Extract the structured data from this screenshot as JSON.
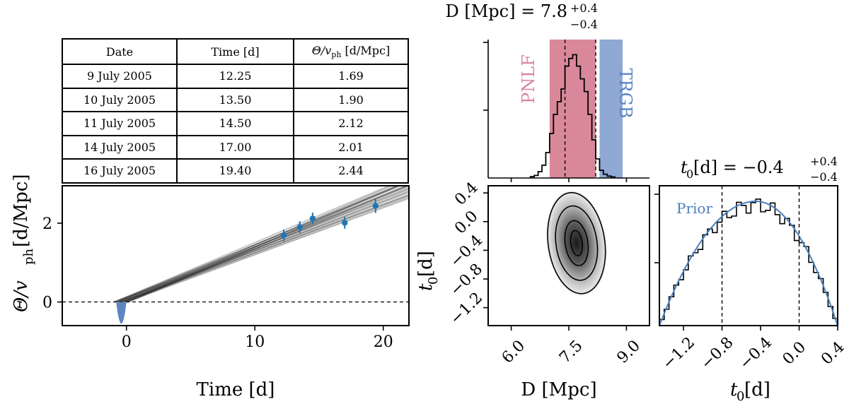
{
  "table": {
    "headers": [
      "Date",
      "Time [d]",
      "Θ/v",
      "ph",
      " [d/Mpc]"
    ],
    "rows": [
      {
        "date": "9 July 2005",
        "time": "12.25",
        "ratio": "1.69"
      },
      {
        "date": "10 July 2005",
        "time": "13.50",
        "ratio": "1.90"
      },
      {
        "date": "11 July 2005",
        "time": "14.50",
        "ratio": "2.12"
      },
      {
        "date": "14 July 2005",
        "time": "17.00",
        "ratio": "2.01"
      },
      {
        "date": "16 July 2005",
        "time": "19.40",
        "ratio": "2.44"
      }
    ]
  },
  "chart_data": [
    {
      "type": "scatter",
      "name": "theta-vs-time",
      "xlabel": "Time [d]",
      "ylabel_main": "Θ/v",
      "ylabel_sub": "ph",
      "ylabel_unit": " [d/Mpc]",
      "xlim": [
        -5,
        22
      ],
      "ylim": [
        -0.6,
        2.95
      ],
      "xticks": [
        0,
        10,
        20
      ],
      "yticks": [
        0,
        2
      ],
      "points": {
        "x": [
          12.25,
          13.5,
          14.5,
          17.0,
          19.4
        ],
        "y": [
          1.69,
          1.9,
          2.12,
          2.01,
          2.44
        ],
        "yerr": [
          0.15,
          0.15,
          0.15,
          0.15,
          0.18
        ]
      },
      "fit_lines": {
        "x0_range": [
          -1.0,
          0.2
        ],
        "slope_range": [
          0.118,
          0.142
        ],
        "count": 40
      },
      "prior_t0": {
        "center": -0.4,
        "width": 0.8
      },
      "zero_line": 0
    },
    {
      "type": "histogram",
      "name": "distance-marginal",
      "title_main": "D [Mpc] = 7.8",
      "title_sup": "+0.4",
      "title_sub": "−0.4",
      "xlim": [
        5.4,
        9.6
      ],
      "bins": {
        "edges_start": 6.5,
        "edge_step": 0.1,
        "counts": [
          0.01,
          0.02,
          0.05,
          0.1,
          0.2,
          0.35,
          0.5,
          0.6,
          0.7,
          0.88,
          0.94,
          0.97,
          0.88,
          0.78,
          0.68,
          0.5,
          0.3,
          0.15,
          0.06,
          0.03,
          0.015,
          0.008
        ]
      },
      "quantiles": [
        7.4,
        8.2
      ],
      "bands": [
        {
          "label": "PNLF",
          "range": [
            7.0,
            8.2
          ],
          "color": "#d9889a"
        },
        {
          "label": "TRGB",
          "range": [
            8.3,
            8.9
          ],
          "color": "#8fa8d4"
        }
      ]
    },
    {
      "type": "heatmap",
      "name": "joint-posterior",
      "xlabel": "D [Mpc]",
      "ylabel": "t",
      "ylabel_sub": "0",
      "ylabel_unit": " [d]",
      "xlim": [
        5.4,
        9.6
      ],
      "ylim": [
        -1.45,
        0.5
      ],
      "xticks": [
        "6.0",
        "7.5",
        "9.0"
      ],
      "xtick_values": [
        6.0,
        7.5,
        9.0
      ],
      "yticks": [
        "0.4",
        "0.0",
        "−0.4",
        "−0.8",
        "−1.2"
      ],
      "ytick_values": [
        0.4,
        0.0,
        -0.4,
        -0.8,
        -1.2
      ],
      "mode": {
        "D": 7.7,
        "t0": -0.3
      }
    },
    {
      "type": "histogram",
      "name": "t0-marginal",
      "title_main": "t",
      "title_sub0": "0",
      "title_rest": " [d] = −0.4",
      "title_sup": "+0.4",
      "title_sub": "−0.4",
      "xlabel": "t",
      "xlabel_sub": "0",
      "xlabel_unit": " [d]",
      "xlim": [
        -1.45,
        0.4
      ],
      "xticks": [
        "−1.2",
        "−0.8",
        "−0.4",
        "0.0",
        "0.4"
      ],
      "xtick_values": [
        -1.2,
        -0.8,
        -0.4,
        0.0,
        0.4
      ],
      "quantiles": [
        -0.8,
        0.0
      ],
      "prior_label": "Prior",
      "prior_color": "#4a7fc0",
      "prior_peak": -0.45
    }
  ]
}
